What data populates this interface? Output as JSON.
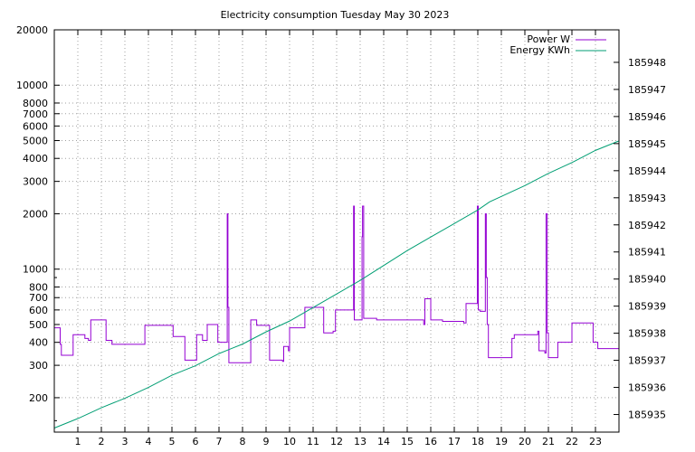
{
  "chart_data": {
    "type": "line",
    "title": "Electricity consumption Tuesday May 30 2023",
    "x_ticks": [
      "1",
      "2",
      "3",
      "4",
      "5",
      "6",
      "7",
      "8",
      "9",
      "10",
      "11",
      "12",
      "13",
      "14",
      "15",
      "16",
      "17",
      "18",
      "19",
      "20",
      "21",
      "22",
      "23"
    ],
    "xlim": [
      0,
      24
    ],
    "y_left": {
      "scale": "log",
      "ylim": [
        130,
        20000
      ],
      "ticks": [
        200,
        300,
        400,
        500,
        600,
        700,
        800,
        1000,
        2000,
        3000,
        4000,
        5000,
        6000,
        7000,
        8000,
        10000,
        20000
      ],
      "tick_labels": [
        "200",
        "300",
        "400",
        "500",
        "600",
        "700",
        "800",
        "1000",
        "2000",
        "3000",
        "4000",
        "5000",
        "6000",
        "7000",
        "8000",
        "10000",
        "20000"
      ]
    },
    "y_right": {
      "scale": "linear",
      "ylim": [
        185934.35,
        185949.2
      ],
      "ticks": [
        185935,
        185936,
        185937,
        185938,
        185939,
        185940,
        185941,
        185942,
        185943,
        185944,
        185945,
        185946,
        185947,
        185948
      ],
      "tick_labels": [
        "185935",
        "185936",
        "185937",
        "185938",
        "185939",
        "185940",
        "185941",
        "185942",
        "185943",
        "185944",
        "185945",
        "185946",
        "185947",
        "185948"
      ]
    },
    "grid": true,
    "legend": {
      "placement": "top-right",
      "entries": [
        "Power W",
        "Energy KWh"
      ]
    },
    "series": [
      {
        "name": "Power W",
        "axis": "left",
        "color": "#9400d3",
        "step": true,
        "points": [
          [
            0.0,
            480
          ],
          [
            0.25,
            390
          ],
          [
            0.3,
            340
          ],
          [
            0.8,
            440
          ],
          [
            1.3,
            420
          ],
          [
            1.45,
            410
          ],
          [
            1.55,
            530
          ],
          [
            2.2,
            410
          ],
          [
            2.45,
            390
          ],
          [
            3.8,
            390
          ],
          [
            3.85,
            495
          ],
          [
            4.9,
            495
          ],
          [
            5.0,
            495
          ],
          [
            5.05,
            430
          ],
          [
            5.55,
            320
          ],
          [
            6.05,
            440
          ],
          [
            6.3,
            410
          ],
          [
            6.5,
            500
          ],
          [
            6.95,
            400
          ],
          [
            7.3,
            400
          ],
          [
            7.35,
            2000
          ],
          [
            7.38,
            620
          ],
          [
            7.42,
            310
          ],
          [
            8.3,
            310
          ],
          [
            8.35,
            530
          ],
          [
            8.6,
            495
          ],
          [
            9.1,
            495
          ],
          [
            9.15,
            320
          ],
          [
            9.7,
            315
          ],
          [
            9.75,
            380
          ],
          [
            9.95,
            360
          ],
          [
            10.0,
            480
          ],
          [
            10.6,
            480
          ],
          [
            10.65,
            620
          ],
          [
            11.4,
            620
          ],
          [
            11.45,
            450
          ],
          [
            11.85,
            460
          ],
          [
            11.95,
            600
          ],
          [
            12.7,
            600
          ],
          [
            12.72,
            2200
          ],
          [
            12.75,
            530
          ],
          [
            13.05,
            530
          ],
          [
            13.08,
            1500
          ],
          [
            13.1,
            2200
          ],
          [
            13.15,
            540
          ],
          [
            13.7,
            530
          ],
          [
            15.7,
            500
          ],
          [
            15.75,
            690
          ],
          [
            16.0,
            530
          ],
          [
            16.5,
            520
          ],
          [
            17.4,
            510
          ],
          [
            17.5,
            650
          ],
          [
            17.95,
            650
          ],
          [
            17.98,
            2200
          ],
          [
            18.02,
            600
          ],
          [
            18.1,
            590
          ],
          [
            18.3,
            590
          ],
          [
            18.32,
            2000
          ],
          [
            18.36,
            900
          ],
          [
            18.4,
            500
          ],
          [
            18.45,
            330
          ],
          [
            19.4,
            330
          ],
          [
            19.45,
            420
          ],
          [
            19.55,
            440
          ],
          [
            20.5,
            440
          ],
          [
            20.55,
            460
          ],
          [
            20.6,
            360
          ],
          [
            20.85,
            350
          ],
          [
            20.9,
            2000
          ],
          [
            20.95,
            450
          ],
          [
            21.0,
            330
          ],
          [
            21.35,
            330
          ],
          [
            21.4,
            400
          ],
          [
            21.95,
            400
          ],
          [
            22.0,
            510
          ],
          [
            22.85,
            510
          ],
          [
            22.9,
            400
          ],
          [
            23.1,
            370
          ],
          [
            23.9,
            370
          ]
        ]
      },
      {
        "name": "Energy KWh",
        "axis": "right",
        "color": "#009e73",
        "step": false,
        "points": [
          [
            0.0,
            185934.5
          ],
          [
            1.0,
            185934.85
          ],
          [
            2.0,
            185935.25
          ],
          [
            3.0,
            185935.6
          ],
          [
            4.0,
            185936.0
          ],
          [
            5.0,
            185936.45
          ],
          [
            6.0,
            185936.8
          ],
          [
            7.0,
            185937.25
          ],
          [
            8.0,
            185937.6
          ],
          [
            9.0,
            185938.05
          ],
          [
            10.0,
            185938.45
          ],
          [
            11.0,
            185938.95
          ],
          [
            12.0,
            185939.45
          ],
          [
            13.0,
            185939.95
          ],
          [
            14.0,
            185940.5
          ],
          [
            15.0,
            185941.05
          ],
          [
            16.0,
            185941.55
          ],
          [
            17.0,
            185942.05
          ],
          [
            18.0,
            185942.55
          ],
          [
            18.5,
            185942.85
          ],
          [
            19.0,
            185943.05
          ],
          [
            20.0,
            185943.45
          ],
          [
            21.0,
            185943.9
          ],
          [
            22.0,
            185944.3
          ],
          [
            23.0,
            185944.75
          ],
          [
            24.0,
            185945.1
          ]
        ]
      }
    ]
  }
}
